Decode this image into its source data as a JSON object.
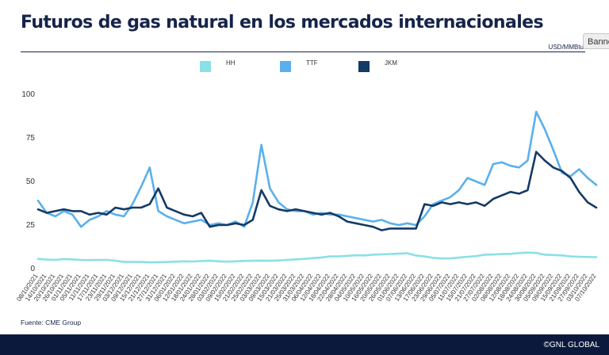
{
  "page": {
    "title": "Futuros de gas natural en los mercados internacionales",
    "unit_label": "USD/MMBtu",
    "banner_label": "Banner",
    "source": "Fuente: CME Group",
    "copyright": "©GNL GLOBAL"
  },
  "chart_data": {
    "type": "line",
    "title": "Futuros de gas natural en los mercados internacionales",
    "xlabel": "",
    "ylabel": "",
    "ylim": [
      0,
      100
    ],
    "yticks": [
      0,
      25,
      50,
      75,
      100
    ],
    "grid": false,
    "legend_position": "top",
    "x": [
      "08/10/2021",
      "14/10/2021",
      "20/10/2021",
      "26/10/2021",
      "01/11/2021",
      "05/11/2021",
      "11/11/2021",
      "17/11/2021",
      "23/11/2021",
      "29/11/2021",
      "03/12/2021",
      "09/12/2021",
      "15/12/2021",
      "21/12/2021",
      "27/12/2021",
      "31/12/2021",
      "06/01/2022",
      "12/01/2022",
      "18/01/2022",
      "24/01/2022",
      "28/01/2022",
      "03/02/2022",
      "09/02/2022",
      "15/02/2022",
      "21/02/2022",
      "25/02/2022",
      "03/03/2022",
      "09/03/2022",
      "15/03/2022",
      "21/03/2022",
      "25/03/2022",
      "31/03/2022",
      "06/04/2022",
      "12/04/2022",
      "18/04/2022",
      "22/04/2022",
      "28/04/2022",
      "04/05/2022",
      "10/05/2022",
      "16/05/2022",
      "20/05/2022",
      "26/05/2022",
      "01/06/2022",
      "07/06/2022",
      "13/06/2022",
      "17/06/2022",
      "23/06/2022",
      "29/06/2022",
      "05/07/2022",
      "11/07/2022",
      "15/07/2022",
      "21/07/2022",
      "27/07/2022",
      "02/08/2022",
      "08/08/2022",
      "12/08/2022",
      "18/08/2022",
      "24/08/2022",
      "30/08/2022",
      "05/09/2022",
      "09/09/2022",
      "15/09/2022",
      "21/09/2022",
      "27/09/2022",
      "03/10/2022",
      "07/10/2022"
    ],
    "series": [
      {
        "name": "HH",
        "color": "#8ae0e6",
        "values": [
          5.6,
          5.2,
          5.0,
          5.5,
          5.3,
          5.0,
          4.9,
          5.0,
          5.0,
          4.5,
          3.9,
          3.8,
          3.8,
          3.6,
          3.7,
          3.8,
          4.0,
          4.2,
          4.1,
          4.3,
          4.6,
          4.2,
          4.0,
          4.2,
          4.4,
          4.5,
          4.6,
          4.5,
          4.7,
          5.0,
          5.3,
          5.6,
          6.0,
          6.4,
          7.0,
          7.0,
          7.3,
          7.7,
          7.6,
          8.0,
          8.2,
          8.4,
          8.6,
          8.8,
          7.5,
          7.0,
          6.2,
          5.8,
          5.9,
          6.3,
          6.8,
          7.2,
          8.0,
          8.1,
          8.4,
          8.5,
          8.9,
          9.2,
          9.0,
          8.0,
          7.8,
          7.6,
          7.0,
          6.8,
          6.7,
          6.6
        ]
      },
      {
        "name": "TTF",
        "color": "#5ab0ec",
        "values": [
          39,
          32,
          30,
          33,
          31,
          24,
          28,
          30,
          33,
          31,
          30,
          37,
          47,
          58,
          33,
          30,
          28,
          26,
          27,
          28,
          25,
          26,
          25,
          27,
          24,
          38,
          71,
          46,
          38,
          34,
          33,
          33,
          31,
          32,
          31,
          31,
          30,
          29,
          28,
          27,
          28,
          26,
          25,
          26,
          25,
          30,
          37,
          39,
          41,
          45,
          52,
          50,
          48,
          60,
          61,
          59,
          58,
          62,
          90,
          80,
          68,
          55,
          53,
          57,
          52,
          48
        ],
        "annotations": []
      },
      {
        "name": "JKM",
        "color": "#143a66",
        "values": [
          34,
          32,
          33,
          34,
          33,
          33,
          31,
          32,
          31,
          35,
          34,
          35,
          35,
          37,
          46,
          35,
          33,
          31,
          30,
          32,
          24,
          25,
          25,
          26,
          25,
          28,
          45,
          36,
          34,
          33,
          34,
          33,
          32,
          31,
          32,
          30,
          27,
          26,
          25,
          24,
          22,
          23,
          23,
          23,
          23,
          37,
          36,
          38,
          37,
          38,
          37,
          38,
          36,
          40,
          42,
          44,
          43,
          45,
          67,
          62,
          58,
          56,
          52,
          44,
          38,
          35
        ]
      }
    ]
  }
}
